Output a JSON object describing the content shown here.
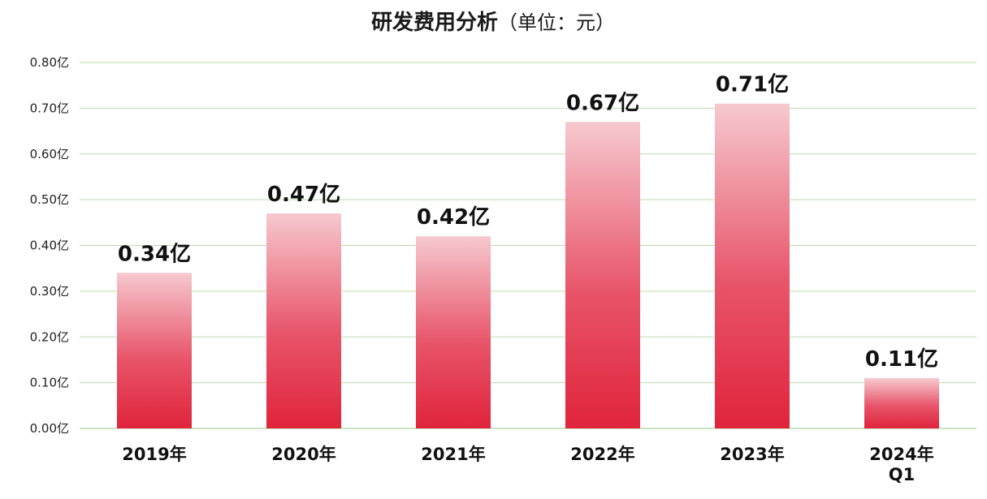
{
  "chart_data": {
    "type": "bar",
    "title": "研发费用分析",
    "subtitle": "（单位：元）",
    "categories": [
      [
        "2019年"
      ],
      [
        "2020年"
      ],
      [
        "2021年"
      ],
      [
        "2022年"
      ],
      [
        "2023年"
      ],
      [
        "2024年",
        "Q1"
      ]
    ],
    "values": [
      0.34,
      0.47,
      0.42,
      0.67,
      0.71,
      0.11
    ],
    "data_labels": [
      "0.34亿",
      "0.47亿",
      "0.42亿",
      "0.67亿",
      "0.71亿",
      "0.11亿"
    ],
    "yticks": [
      "0.00亿",
      "0.10亿",
      "0.20亿",
      "0.30亿",
      "0.40亿",
      "0.50亿",
      "0.60亿",
      "0.70亿",
      "0.80亿"
    ],
    "ylim": [
      0,
      0.8
    ],
    "grid": true,
    "legend": "none",
    "colors": {
      "bar_top": "#f6c9cf",
      "bar_bottom": "#e0243c",
      "grid": "#b9dcae"
    }
  }
}
